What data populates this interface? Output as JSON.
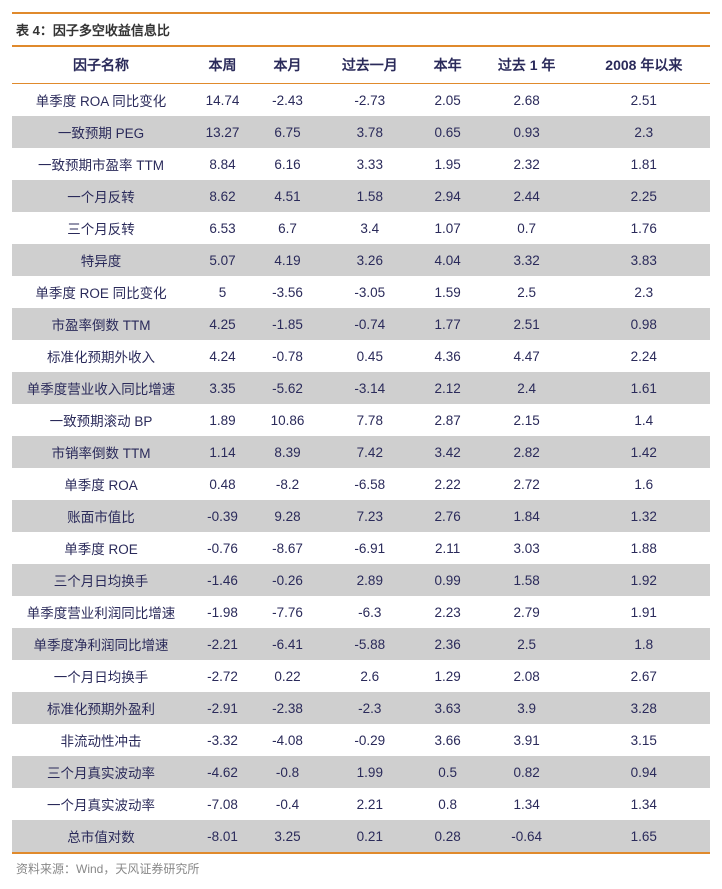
{
  "title": "表 4：因子多空收益信息比",
  "source": "资料来源：Wind，天风证券研究所",
  "columns": [
    "因子名称",
    "本周",
    "本月",
    "过去一月",
    "本年",
    "过去 1 年",
    "2008 年以来"
  ],
  "col_widths": [
    "170px",
    "auto",
    "auto",
    "auto",
    "auto",
    "auto",
    "auto"
  ],
  "header_bg": "#ffffff",
  "row_odd_bg": "#ffffff",
  "row_even_bg": "#cfcfcf",
  "border_color": "#e08a2c",
  "text_color": "#2a2a5a",
  "font_size_header": 14,
  "font_size_cell": 13.5,
  "rows": [
    [
      "单季度 ROA 同比变化",
      "14.74",
      "-2.43",
      "-2.73",
      "2.05",
      "2.68",
      "2.51"
    ],
    [
      "一致预期 PEG",
      "13.27",
      "6.75",
      "3.78",
      "0.65",
      "0.93",
      "2.3"
    ],
    [
      "一致预期市盈率 TTM",
      "8.84",
      "6.16",
      "3.33",
      "1.95",
      "2.32",
      "1.81"
    ],
    [
      "一个月反转",
      "8.62",
      "4.51",
      "1.58",
      "2.94",
      "2.44",
      "2.25"
    ],
    [
      "三个月反转",
      "6.53",
      "6.7",
      "3.4",
      "1.07",
      "0.7",
      "1.76"
    ],
    [
      "特异度",
      "5.07",
      "4.19",
      "3.26",
      "4.04",
      "3.32",
      "3.83"
    ],
    [
      "单季度 ROE 同比变化",
      "5",
      "-3.56",
      "-3.05",
      "1.59",
      "2.5",
      "2.3"
    ],
    [
      "市盈率倒数 TTM",
      "4.25",
      "-1.85",
      "-0.74",
      "1.77",
      "2.51",
      "0.98"
    ],
    [
      "标准化预期外收入",
      "4.24",
      "-0.78",
      "0.45",
      "4.36",
      "4.47",
      "2.24"
    ],
    [
      "单季度营业收入同比增速",
      "3.35",
      "-5.62",
      "-3.14",
      "2.12",
      "2.4",
      "1.61"
    ],
    [
      "一致预期滚动 BP",
      "1.89",
      "10.86",
      "7.78",
      "2.87",
      "2.15",
      "1.4"
    ],
    [
      "市销率倒数 TTM",
      "1.14",
      "8.39",
      "7.42",
      "3.42",
      "2.82",
      "1.42"
    ],
    [
      "单季度 ROA",
      "0.48",
      "-8.2",
      "-6.58",
      "2.22",
      "2.72",
      "1.6"
    ],
    [
      "账面市值比",
      "-0.39",
      "9.28",
      "7.23",
      "2.76",
      "1.84",
      "1.32"
    ],
    [
      "单季度 ROE",
      "-0.76",
      "-8.67",
      "-6.91",
      "2.11",
      "3.03",
      "1.88"
    ],
    [
      "三个月日均换手",
      "-1.46",
      "-0.26",
      "2.89",
      "0.99",
      "1.58",
      "1.92"
    ],
    [
      "单季度营业利润同比增速",
      "-1.98",
      "-7.76",
      "-6.3",
      "2.23",
      "2.79",
      "1.91"
    ],
    [
      "单季度净利润同比增速",
      "-2.21",
      "-6.41",
      "-5.88",
      "2.36",
      "2.5",
      "1.8"
    ],
    [
      "一个月日均换手",
      "-2.72",
      "0.22",
      "2.6",
      "1.29",
      "2.08",
      "2.67"
    ],
    [
      "标准化预期外盈利",
      "-2.91",
      "-2.38",
      "-2.3",
      "3.63",
      "3.9",
      "3.28"
    ],
    [
      "非流动性冲击",
      "-3.32",
      "-4.08",
      "-0.29",
      "3.66",
      "3.91",
      "3.15"
    ],
    [
      "三个月真实波动率",
      "-4.62",
      "-0.8",
      "1.99",
      "0.5",
      "0.82",
      "0.94"
    ],
    [
      "一个月真实波动率",
      "-7.08",
      "-0.4",
      "2.21",
      "0.8",
      "1.34",
      "1.34"
    ],
    [
      "总市值对数",
      "-8.01",
      "3.25",
      "0.21",
      "0.28",
      "-0.64",
      "1.65"
    ]
  ]
}
